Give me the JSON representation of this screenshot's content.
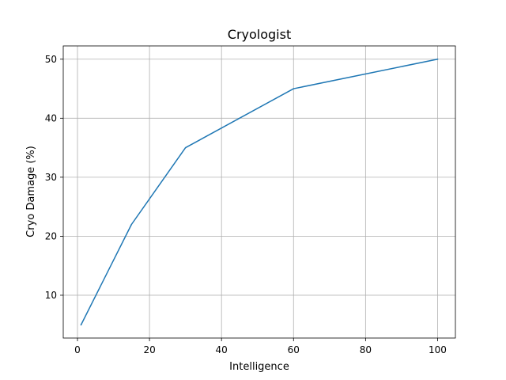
{
  "chart_data": {
    "type": "line",
    "title": "Cryologist",
    "xlabel": "Intelligence",
    "ylabel": "Cryo Damage (%)",
    "xlim": [
      -3.95,
      104.95
    ],
    "ylim": [
      2.75,
      52.25
    ],
    "xticks": [
      0,
      20,
      40,
      60,
      80,
      100
    ],
    "yticks": [
      10,
      20,
      30,
      40,
      50
    ],
    "grid": true,
    "series": [
      {
        "color": "#1f77b4",
        "x": [
          1,
          15,
          30,
          60,
          100
        ],
        "y": [
          5,
          22,
          35,
          45,
          50
        ]
      }
    ]
  }
}
